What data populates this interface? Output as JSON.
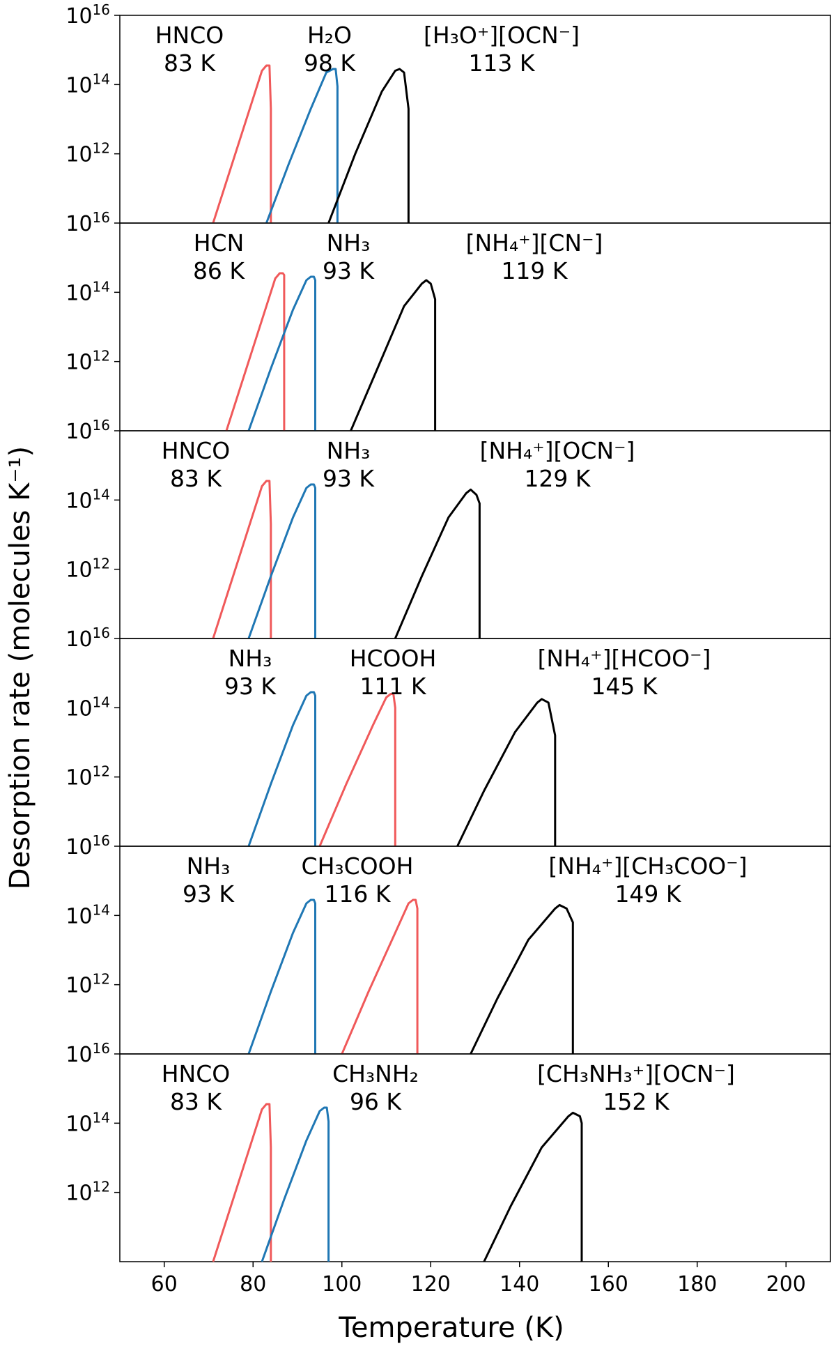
{
  "chart_data": {
    "type": "line",
    "xlabel": "Temperature (K)",
    "ylabel": "Desorption rate (molecules K⁻¹)",
    "xlim": [
      50,
      210
    ],
    "x_ticks": [
      60,
      80,
      100,
      120,
      140,
      160,
      180,
      200
    ],
    "ylim_log10": [
      10,
      16
    ],
    "y_tick_base": "10",
    "y_tick_exponents": [
      "16",
      "14",
      "12"
    ],
    "y_scale": "log",
    "grid": false,
    "colors": {
      "red": "#f0595a",
      "blue": "#1f77b4",
      "black": "#000000"
    },
    "panels": [
      {
        "labels": [
          {
            "name": "HNCO",
            "temp": "83 K"
          },
          {
            "name": "H₂O",
            "temp": "98 K"
          },
          {
            "name": "[H₃O⁺][OCN⁻]",
            "temp": "113 K"
          }
        ],
        "series": [
          {
            "color": "red",
            "x": [
              71,
              75,
              79,
              82,
              83,
              83.7,
              84,
              84
            ],
            "y": [
              10.0,
              11.6,
              13.2,
              14.4,
              14.55,
              14.55,
              13.3,
              10.0
            ]
          },
          {
            "color": "blue",
            "x": [
              83,
              88,
              93,
              96.5,
              98,
              98.6,
              99,
              99
            ],
            "y": [
              10.0,
              11.7,
              13.3,
              14.35,
              14.45,
              14.45,
              13.95,
              10.0
            ]
          },
          {
            "color": "black",
            "x": [
              97,
              103,
              109,
              112,
              113,
              114,
              115,
              115
            ],
            "y": [
              10.0,
              12.0,
              13.8,
              14.4,
              14.45,
              14.35,
              13.3,
              10.0
            ]
          }
        ]
      },
      {
        "labels": [
          {
            "name": "HCN",
            "temp": "86 K"
          },
          {
            "name": "NH₃",
            "temp": "93 K"
          },
          {
            "name": "[NH₄⁺][CN⁻]",
            "temp": "119 K"
          }
        ],
        "series": [
          {
            "color": "red",
            "x": [
              74,
              78,
              82,
              85,
              86,
              86.7,
              87,
              87
            ],
            "y": [
              10.0,
              11.6,
              13.2,
              14.4,
              14.55,
              14.55,
              14.5,
              10.0
            ]
          },
          {
            "color": "blue",
            "x": [
              79,
              84,
              89,
              92,
              93,
              93.7,
              94,
              94
            ],
            "y": [
              10.0,
              11.8,
              13.5,
              14.35,
              14.45,
              14.45,
              14.35,
              10.0
            ]
          },
          {
            "color": "black",
            "x": [
              102,
              108,
              114,
              118,
              119,
              120,
              121,
              121
            ],
            "y": [
              10.0,
              11.8,
              13.6,
              14.25,
              14.35,
              14.25,
              13.8,
              10.0
            ]
          }
        ]
      },
      {
        "labels": [
          {
            "name": "HNCO",
            "temp": "83 K"
          },
          {
            "name": "NH₃",
            "temp": "93 K"
          },
          {
            "name": "[NH₄⁺][OCN⁻]",
            "temp": "129 K"
          }
        ],
        "series": [
          {
            "color": "red",
            "x": [
              71,
              75,
              79,
              82,
              83,
              83.7,
              84,
              84
            ],
            "y": [
              10.0,
              11.6,
              13.2,
              14.4,
              14.55,
              14.55,
              13.3,
              10.0
            ]
          },
          {
            "color": "blue",
            "x": [
              79,
              84,
              89,
              92,
              93,
              93.7,
              94,
              94
            ],
            "y": [
              10.0,
              11.8,
              13.5,
              14.35,
              14.45,
              14.45,
              14.35,
              10.0
            ]
          },
          {
            "color": "black",
            "x": [
              112,
              118,
              124,
              128,
              129,
              130.3,
              131,
              131
            ],
            "y": [
              10.0,
              11.8,
              13.5,
              14.2,
              14.3,
              14.15,
              13.9,
              10.0
            ]
          }
        ]
      },
      {
        "labels": [
          {
            "name": "NH₃",
            "temp": "93 K"
          },
          {
            "name": "HCOOH",
            "temp": "111 K"
          },
          {
            "name": "[NH₄⁺][HCOO⁻]",
            "temp": "145 K"
          }
        ],
        "series": [
          {
            "color": "blue",
            "x": [
              79,
              84,
              89,
              92,
              93,
              93.7,
              94,
              94
            ],
            "y": [
              10.0,
              11.8,
              13.5,
              14.35,
              14.45,
              14.45,
              14.35,
              10.0
            ]
          },
          {
            "color": "red",
            "x": [
              95,
              101,
              107,
              110,
              111,
              111.6,
              112,
              112
            ],
            "y": [
              10.0,
              11.8,
              13.5,
              14.3,
              14.4,
              14.4,
              14.0,
              10.0
            ]
          },
          {
            "color": "black",
            "x": [
              126,
              132,
              139,
              144,
              145,
              146.5,
              148,
              148
            ],
            "y": [
              10.0,
              11.6,
              13.3,
              14.15,
              14.25,
              14.15,
              13.2,
              10.0
            ]
          }
        ]
      },
      {
        "labels": [
          {
            "name": "NH₃",
            "temp": "93 K"
          },
          {
            "name": "CH₃COOH",
            "temp": "116 K"
          },
          {
            "name": "[NH₄⁺][CH₃COO⁻]",
            "temp": "149 K"
          }
        ],
        "series": [
          {
            "color": "blue",
            "x": [
              79,
              84,
              89,
              92,
              93,
              93.7,
              94,
              94
            ],
            "y": [
              10.0,
              11.8,
              13.5,
              14.35,
              14.45,
              14.45,
              14.35,
              10.0
            ]
          },
          {
            "color": "red",
            "x": [
              100,
              106,
              112,
              115,
              116,
              116.6,
              117,
              117
            ],
            "y": [
              10.0,
              11.8,
              13.5,
              14.35,
              14.45,
              14.45,
              14.2,
              10.0
            ]
          },
          {
            "color": "black",
            "x": [
              129,
              135,
              142,
              148,
              149,
              150.6,
              152,
              152
            ],
            "y": [
              10.0,
              11.6,
              13.3,
              14.2,
              14.3,
              14.2,
              13.8,
              10.0
            ]
          }
        ]
      },
      {
        "labels": [
          {
            "name": "HNCO",
            "temp": "83 K"
          },
          {
            "name": "CH₃NH₂",
            "temp": "96 K"
          },
          {
            "name": "[CH₃NH₃⁺][OCN⁻]",
            "temp": "152 K"
          }
        ],
        "series": [
          {
            "color": "red",
            "x": [
              71,
              75,
              79,
              82,
              83,
              83.7,
              84,
              84
            ],
            "y": [
              10.0,
              11.6,
              13.2,
              14.4,
              14.55,
              14.55,
              13.3,
              10.0
            ]
          },
          {
            "color": "blue",
            "x": [
              82,
              87,
              92,
              95,
              96,
              96.6,
              97,
              97
            ],
            "y": [
              10.0,
              11.8,
              13.5,
              14.35,
              14.45,
              14.45,
              14.05,
              10.0
            ]
          },
          {
            "color": "black",
            "x": [
              132,
              138,
              145,
              151,
              152,
              153.6,
              154,
              154
            ],
            "y": [
              10.0,
              11.6,
              13.3,
              14.2,
              14.3,
              14.2,
              14.0,
              10.0
            ]
          }
        ]
      }
    ]
  }
}
